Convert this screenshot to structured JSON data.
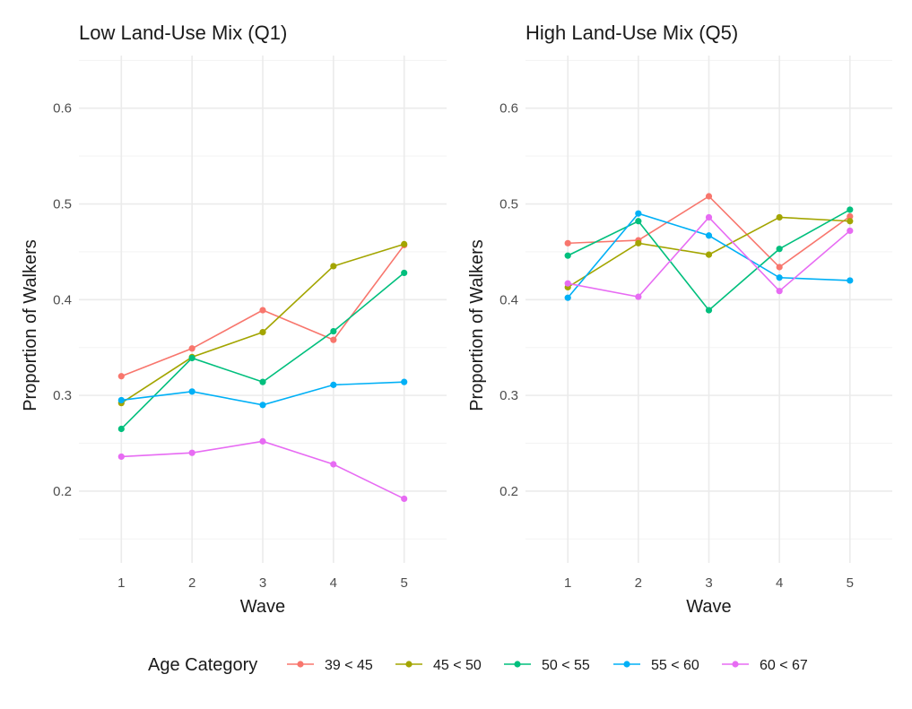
{
  "chart_data": [
    {
      "type": "line",
      "title": "Low Land-Use Mix (Q1)",
      "xlabel": "Wave",
      "ylabel": "Proportion of Walkers",
      "x": [
        1,
        2,
        3,
        4,
        5
      ],
      "x_ticks": [
        "1",
        "2",
        "3",
        "4",
        "5"
      ],
      "y_ticks": [
        "0.2",
        "0.3",
        "0.4",
        "0.5",
        "0.6"
      ],
      "xlim": [
        0.4,
        5.6
      ],
      "ylim": [
        0.125,
        0.655
      ],
      "grid": true,
      "series": [
        {
          "name": "39 < 45",
          "values": [
            0.32,
            0.349,
            0.389,
            0.358,
            0.457
          ]
        },
        {
          "name": "45 < 50",
          "values": [
            0.292,
            0.34,
            0.366,
            0.435,
            0.458
          ]
        },
        {
          "name": "50 < 55",
          "values": [
            0.265,
            0.339,
            0.314,
            0.367,
            0.428
          ]
        },
        {
          "name": "55 < 60",
          "values": [
            0.295,
            0.304,
            0.29,
            0.311,
            0.314
          ]
        },
        {
          "name": "60 < 67",
          "values": [
            0.236,
            0.24,
            0.252,
            0.228,
            0.192
          ]
        }
      ]
    },
    {
      "type": "line",
      "title": "High Land-Use Mix (Q5)",
      "xlabel": "Wave",
      "ylabel": "Proportion of Walkers",
      "x": [
        1,
        2,
        3,
        4,
        5
      ],
      "x_ticks": [
        "1",
        "2",
        "3",
        "4",
        "5"
      ],
      "y_ticks": [
        "0.2",
        "0.3",
        "0.4",
        "0.5",
        "0.6"
      ],
      "xlim": [
        0.4,
        5.6
      ],
      "ylim": [
        0.125,
        0.655
      ],
      "grid": true,
      "series": [
        {
          "name": "39 < 45",
          "values": [
            0.459,
            0.462,
            0.508,
            0.434,
            0.487
          ]
        },
        {
          "name": "45 < 50",
          "values": [
            0.413,
            0.459,
            0.447,
            0.486,
            0.482
          ]
        },
        {
          "name": "50 < 55",
          "values": [
            0.446,
            0.482,
            0.389,
            0.453,
            0.494
          ]
        },
        {
          "name": "55 < 60",
          "values": [
            0.402,
            0.49,
            0.467,
            0.423,
            0.42
          ]
        },
        {
          "name": "60 < 67",
          "values": [
            0.417,
            0.403,
            0.486,
            0.409,
            0.472
          ]
        }
      ]
    }
  ],
  "legend": {
    "title": "Age Category",
    "position": "bottom",
    "entries": [
      "39 < 45",
      "45 < 50",
      "50 < 55",
      "55 < 60",
      "60 < 67"
    ]
  },
  "colors": {
    "39 < 45": "#F8766D",
    "45 < 50": "#A3A500",
    "50 < 55": "#00BF7D",
    "55 < 60": "#00B0F6",
    "60 < 67": "#E76BF3",
    "grid_major": "#ebebeb",
    "grid_minor": "#f3f3f3"
  }
}
